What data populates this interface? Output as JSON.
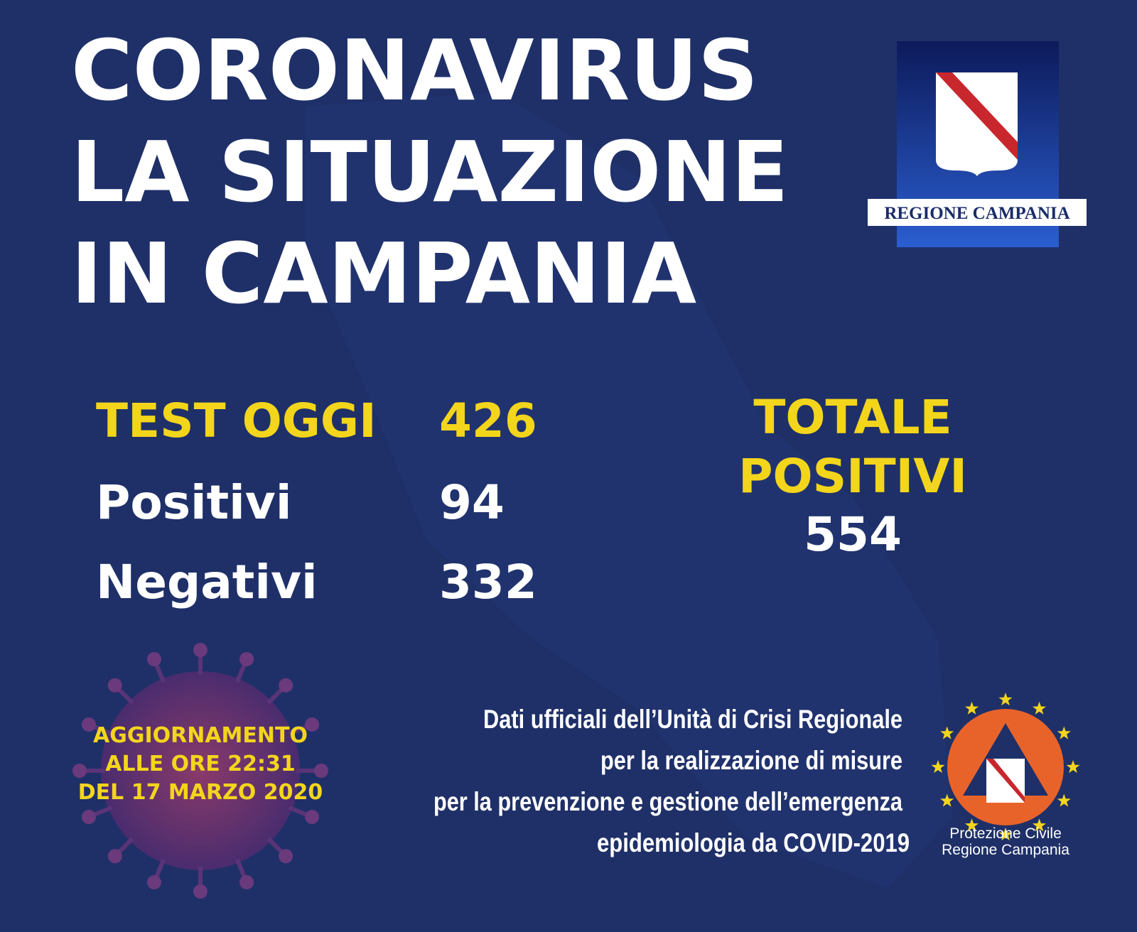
{
  "header": {
    "title": [
      "CORONAVIRUS",
      "LA SITUAZIONE",
      "IN CAMPANIA"
    ]
  },
  "logo": {
    "label": "REGIONE CAMPANIA"
  },
  "stats": {
    "rows": [
      [
        "TEST OGGI",
        "426"
      ],
      [
        "Positivi",
        "94"
      ],
      [
        "Negativi",
        "332"
      ]
    ]
  },
  "total": {
    "label": [
      "TOTALE",
      "POSITIVI"
    ],
    "value": "554"
  },
  "update": {
    "lines": [
      "AGGIORNAMENTO",
      "ALLE ORE 22:31",
      "DEL 17 MARZO 2020"
    ]
  },
  "footer": {
    "lines": [
      "Dati ufficiali dell’Unità di Crisi Regionale",
      "per la realizzazione di misure",
      "per la prevenzione e gestione dell’emergenza",
      "epidemiologia da COVID-2019"
    ]
  },
  "civil_protection": {
    "label": [
      "Protezione Civile",
      "Regione Campania"
    ]
  }
}
